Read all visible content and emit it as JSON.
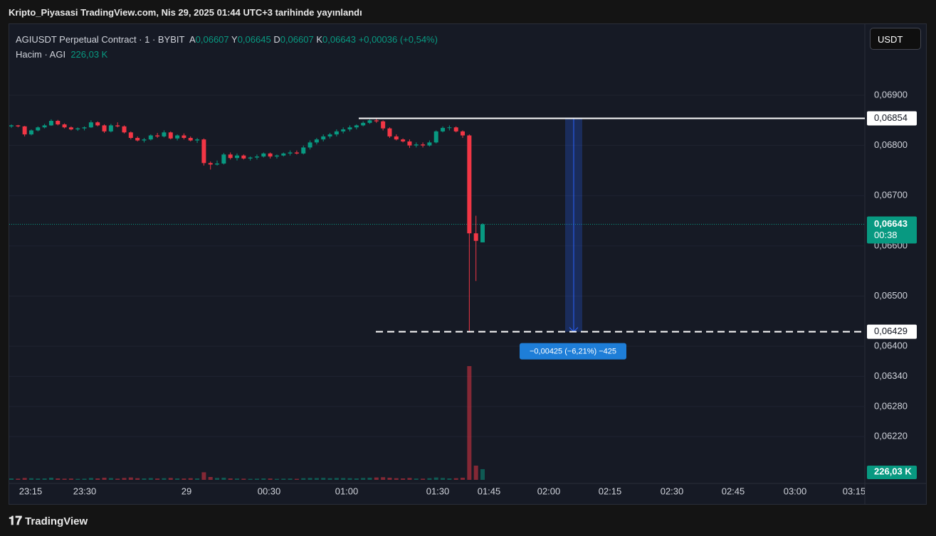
{
  "header": {
    "title": "Kripto_Piyasasi TradingView.com, Nis 29, 2025 01:44 UTC+3 tarihinde yayınlandı"
  },
  "legend": {
    "symbol": "AGIUSDT Perpetual Contract · 1 · BYBIT",
    "ohlc": [
      {
        "key": "A",
        "value": "0,06607"
      },
      {
        "key": "Y",
        "value": "0,06645"
      },
      {
        "key": "D",
        "value": "0,06607"
      },
      {
        "key": "K",
        "value": "0,06643"
      }
    ],
    "change": "+0,00036 (+0,54%)",
    "volume_name": "Hacim · AGI",
    "volume_value": "226,03 K"
  },
  "currency_button": "USDT",
  "chart_data": {
    "type": "candlestick",
    "ohlc": [
      [
        0.06838,
        0.06842,
        0.06835,
        0.0684
      ],
      [
        0.0684,
        0.06841,
        0.06836,
        0.06838
      ],
      [
        0.06838,
        0.06839,
        0.06818,
        0.06822
      ],
      [
        0.06822,
        0.06832,
        0.0682,
        0.0683
      ],
      [
        0.0683,
        0.06838,
        0.06828,
        0.06836
      ],
      [
        0.06836,
        0.06843,
        0.06834,
        0.0684
      ],
      [
        0.0684,
        0.06852,
        0.06839,
        0.06849
      ],
      [
        0.06849,
        0.06851,
        0.0684,
        0.06842
      ],
      [
        0.06842,
        0.06844,
        0.06834,
        0.06836
      ],
      [
        0.06836,
        0.06838,
        0.0683,
        0.06832
      ],
      [
        0.06832,
        0.06836,
        0.06829,
        0.06834
      ],
      [
        0.06834,
        0.06838,
        0.0683,
        0.06836
      ],
      [
        0.06836,
        0.0685,
        0.06835,
        0.06846
      ],
      [
        0.06846,
        0.06848,
        0.06838,
        0.0684
      ],
      [
        0.0684,
        0.06842,
        0.06825,
        0.06828
      ],
      [
        0.06828,
        0.06843,
        0.06826,
        0.0684
      ],
      [
        0.0684,
        0.06846,
        0.06836,
        0.06838
      ],
      [
        0.06838,
        0.0684,
        0.06824,
        0.06826
      ],
      [
        0.06826,
        0.06828,
        0.06812,
        0.06815
      ],
      [
        0.06815,
        0.06818,
        0.06808,
        0.0681
      ],
      [
        0.0681,
        0.06815,
        0.06806,
        0.06812
      ],
      [
        0.06812,
        0.06822,
        0.0681,
        0.0682
      ],
      [
        0.0682,
        0.06825,
        0.06815,
        0.06818
      ],
      [
        0.06818,
        0.0683,
        0.06816,
        0.06826
      ],
      [
        0.06826,
        0.06828,
        0.06812,
        0.06814
      ],
      [
        0.06814,
        0.06822,
        0.0681,
        0.0682
      ],
      [
        0.0682,
        0.06824,
        0.06812,
        0.06815
      ],
      [
        0.06815,
        0.06818,
        0.06808,
        0.0681
      ],
      [
        0.0681,
        0.06815,
        0.06805,
        0.06812
      ],
      [
        0.06812,
        0.06814,
        0.0676,
        0.06765
      ],
      [
        0.06765,
        0.06768,
        0.06752,
        0.06762
      ],
      [
        0.06762,
        0.0677,
        0.0676,
        0.06764
      ],
      [
        0.06764,
        0.06785,
        0.06762,
        0.06782
      ],
      [
        0.06782,
        0.06786,
        0.06772,
        0.06775
      ],
      [
        0.06775,
        0.06784,
        0.0677,
        0.0678
      ],
      [
        0.0678,
        0.06782,
        0.06772,
        0.06774
      ],
      [
        0.06774,
        0.06778,
        0.0677,
        0.06776
      ],
      [
        0.06776,
        0.06782,
        0.06772,
        0.06778
      ],
      [
        0.06778,
        0.06786,
        0.06776,
        0.06784
      ],
      [
        0.06784,
        0.06786,
        0.06774,
        0.06778
      ],
      [
        0.06778,
        0.06782,
        0.06774,
        0.0678
      ],
      [
        0.0678,
        0.06786,
        0.06778,
        0.06784
      ],
      [
        0.06784,
        0.0679,
        0.0678,
        0.06786
      ],
      [
        0.06786,
        0.0679,
        0.06782,
        0.06784
      ],
      [
        0.06784,
        0.068,
        0.06782,
        0.06796
      ],
      [
        0.06796,
        0.0681,
        0.06792,
        0.06806
      ],
      [
        0.06806,
        0.06815,
        0.06802,
        0.06812
      ],
      [
        0.06812,
        0.06822,
        0.06808,
        0.06818
      ],
      [
        0.06818,
        0.06825,
        0.06814,
        0.06822
      ],
      [
        0.06822,
        0.06832,
        0.06818,
        0.06828
      ],
      [
        0.06828,
        0.06836,
        0.06824,
        0.06832
      ],
      [
        0.06832,
        0.0684,
        0.06828,
        0.06836
      ],
      [
        0.06836,
        0.06842,
        0.06832,
        0.0684
      ],
      [
        0.0684,
        0.06848,
        0.06838,
        0.06845
      ],
      [
        0.06845,
        0.06852,
        0.06843,
        0.0685
      ],
      [
        0.0685,
        0.06854,
        0.06845,
        0.06848
      ],
      [
        0.06848,
        0.0685,
        0.0683,
        0.06834
      ],
      [
        0.06834,
        0.06836,
        0.06815,
        0.06818
      ],
      [
        0.06818,
        0.06822,
        0.0681,
        0.06812
      ],
      [
        0.06812,
        0.06814,
        0.06806,
        0.06808
      ],
      [
        0.06808,
        0.06812,
        0.06795,
        0.068
      ],
      [
        0.068,
        0.06806,
        0.06796,
        0.06802
      ],
      [
        0.06802,
        0.06806,
        0.06796,
        0.068
      ],
      [
        0.068,
        0.0681,
        0.06798,
        0.06806
      ],
      [
        0.06806,
        0.0683,
        0.06804,
        0.06828
      ],
      [
        0.06828,
        0.06838,
        0.06826,
        0.06835
      ],
      [
        0.06835,
        0.0684,
        0.0683,
        0.06836
      ],
      [
        0.06836,
        0.06838,
        0.06826,
        0.06828
      ],
      [
        0.06828,
        0.0683,
        0.06815,
        0.0682
      ],
      [
        0.0682,
        0.06822,
        0.06429,
        0.06625
      ],
      [
        0.06625,
        0.0666,
        0.0653,
        0.0661
      ],
      [
        0.06607,
        0.06645,
        0.06607,
        0.06643
      ]
    ],
    "volumes": [
      30,
      25,
      40,
      35,
      28,
      30,
      45,
      30,
      25,
      28,
      22,
      25,
      40,
      30,
      45,
      38,
      25,
      40,
      50,
      35,
      30,
      38,
      28,
      35,
      40,
      30,
      28,
      35,
      30,
      160,
      60,
      40,
      45,
      30,
      28,
      25,
      22,
      25,
      30,
      28,
      22,
      25,
      28,
      22,
      35,
      40,
      38,
      42,
      35,
      40,
      38,
      35,
      30,
      40,
      45,
      50,
      55,
      45,
      35,
      30,
      40,
      28,
      25,
      35,
      50,
      40,
      30,
      35,
      45,
      2400,
      300,
      226.03
    ],
    "ylim": [
      0.06134,
      0.07043
    ],
    "yticks": [
      {
        "value": 0.069,
        "label": "0,06900"
      },
      {
        "value": 0.068,
        "label": "0,06800"
      },
      {
        "value": 0.067,
        "label": "0,06700"
      },
      {
        "value": 0.066,
        "label": "0,06600"
      },
      {
        "value": 0.065,
        "label": "0,06500"
      },
      {
        "value": 0.064,
        "label": "0,06400"
      },
      {
        "value": 0.0634,
        "label": "0,06340"
      },
      {
        "value": 0.0628,
        "label": "0,06280"
      },
      {
        "value": 0.0622,
        "label": "0,06220"
      }
    ],
    "xticks": [
      "23:15",
      "23:30",
      "29",
      "00:30",
      "01:00",
      "01:30",
      "01:45",
      "02:00",
      "02:15",
      "02:30",
      "02:45",
      "03:00",
      "03:15"
    ],
    "up_color": "#089981",
    "down_color": "#f23645",
    "grid": true,
    "last_price": {
      "value": 0.06643,
      "label": "0,06643"
    },
    "countdown": "00:38",
    "volume_label": "226,03 K",
    "levels": [
      {
        "value": 0.06854,
        "label": "0,06854"
      },
      {
        "value": 0.06429,
        "label": "0,06429"
      }
    ],
    "measure_label": "−0,00425 (−6,21%) −425"
  },
  "footer": {
    "brand": "TradingView"
  }
}
